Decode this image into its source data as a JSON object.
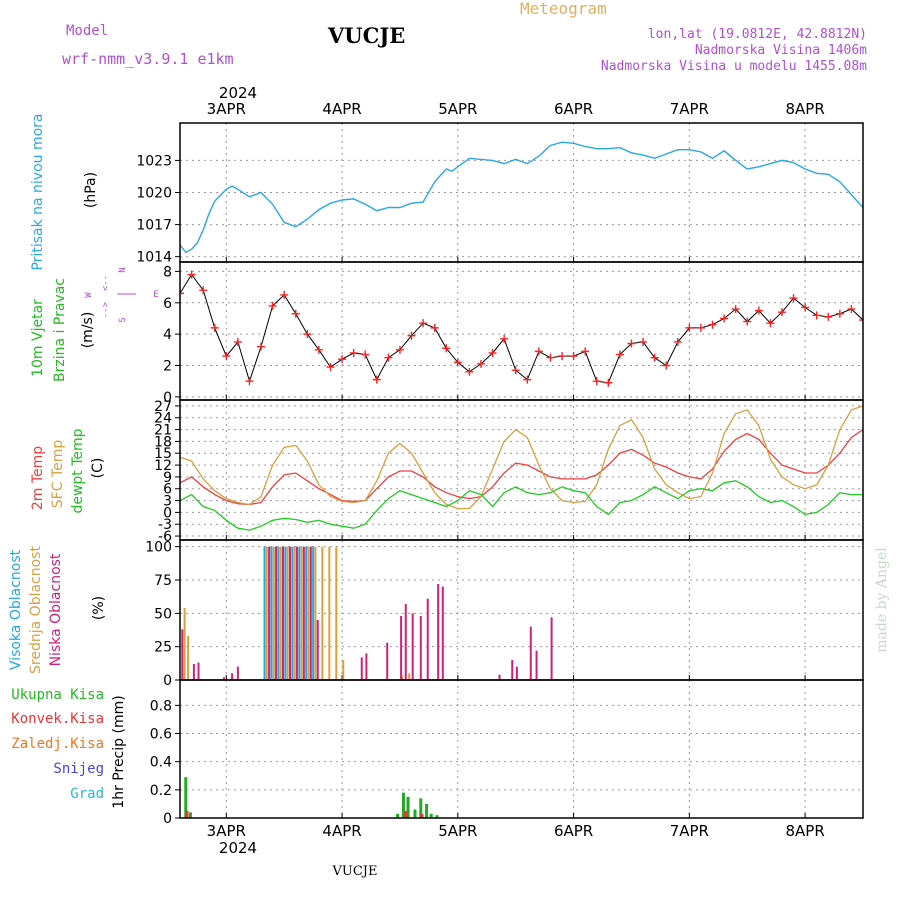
{
  "header": {
    "model_label": "Model",
    "model_name": "wrf-nmm_v3.9.1 e1km",
    "station": "VUCJE",
    "product": "Meteogram",
    "lonlat": "lon,lat (19.0812E, 42.8812N)",
    "elevation": "Nadmorska Visina 1406m",
    "model_elevation": "Nadmorska Visina u modelu 1455.08m"
  },
  "colors": {
    "pressure": "#2aa7e6",
    "wind_label": "#22bb22",
    "purple": "#b050d0",
    "orange": "#e0a030",
    "temp": "#ee4040",
    "sfc": "#d8a040",
    "dewpt": "#22cc22",
    "high_cloud": "#22aadd",
    "mid_cloud": "#d8a040",
    "low_cloud": "#cc2277",
    "precip_total": "#22aa22",
    "precip_conv": "#ee3333",
    "precip_frozen": "#ee7722",
    "precip_snow": "#4444dd",
    "precip_grad": "#22bbcc",
    "credit": "#c8d8c8"
  },
  "time_axis": {
    "year": "2024",
    "days": [
      "3APR",
      "4APR",
      "5APR",
      "6APR",
      "7APR",
      "8APR"
    ],
    "day_positions": [
      3,
      4,
      5,
      6,
      7,
      8
    ],
    "range": [
      2.6,
      8.5
    ]
  },
  "compass": {
    "n": "N",
    "w": "W",
    "e": "E",
    "s": "S",
    "w_arrow": "<--",
    "e_arrow": "-->"
  },
  "footer_station": "VUCJE",
  "credit": "made by Angel",
  "chart_data": [
    {
      "type": "line",
      "name": "pressure",
      "ylabel": [
        "Pritisak na nivou mora",
        "(hPa)"
      ],
      "ylim": [
        1013.5,
        1026.5
      ],
      "yticks": [
        1014,
        1017,
        1020,
        1023
      ],
      "series": [
        {
          "x": [
            2.6,
            2.65,
            2.7,
            2.75,
            2.8,
            2.85,
            2.9,
            3.0,
            3.05,
            3.1,
            3.2,
            3.3,
            3.4,
            3.5,
            3.6,
            3.7,
            3.8,
            3.9,
            4.0,
            4.1,
            4.2,
            4.3,
            4.4,
            4.5,
            4.6,
            4.7,
            4.8,
            4.85,
            4.9,
            4.95,
            5.0,
            5.1,
            5.2,
            5.3,
            5.4,
            5.5,
            5.6,
            5.7,
            5.8,
            5.9,
            6.0,
            6.1,
            6.2,
            6.3,
            6.4,
            6.5,
            6.6,
            6.7,
            6.8,
            6.9,
            7.0,
            7.1,
            7.2,
            7.3,
            7.4,
            7.5,
            7.6,
            7.7,
            7.8,
            7.9,
            8.0,
            8.1,
            8.2,
            8.3,
            8.4,
            8.5
          ],
          "values": [
            1015.1,
            1014.4,
            1014.7,
            1015.3,
            1016.5,
            1018.0,
            1019.2,
            1020.3,
            1020.6,
            1020.3,
            1019.6,
            1020.0,
            1018.9,
            1017.2,
            1016.8,
            1017.5,
            1018.4,
            1019.0,
            1019.3,
            1019.4,
            1018.9,
            1018.3,
            1018.6,
            1018.6,
            1019.0,
            1019.1,
            1021.0,
            1021.6,
            1022.2,
            1022.0,
            1022.4,
            1023.2,
            1023.1,
            1023.0,
            1022.7,
            1023.1,
            1022.7,
            1023.4,
            1024.4,
            1024.7,
            1024.6,
            1024.3,
            1024.1,
            1024.1,
            1024.2,
            1023.7,
            1023.5,
            1023.2,
            1023.6,
            1024.0,
            1024.0,
            1023.8,
            1023.2,
            1023.9,
            1023.0,
            1022.2,
            1022.4,
            1022.7,
            1023.0,
            1022.8,
            1022.2,
            1021.8,
            1021.7,
            1021.0,
            1019.8,
            1018.6
          ]
        }
      ]
    },
    {
      "type": "line",
      "name": "wind",
      "ylabel": [
        "10m Vjetar",
        "Brzina i Pravac",
        "(m/s)"
      ],
      "ylim": [
        -0.2,
        8.6
      ],
      "yticks": [
        0,
        2,
        4,
        6,
        8
      ],
      "series": [
        {
          "name": "speed",
          "x": [
            2.6,
            2.7,
            2.8,
            2.9,
            3.0,
            3.1,
            3.2,
            3.3,
            3.4,
            3.5,
            3.6,
            3.7,
            3.8,
            3.9,
            4.0,
            4.1,
            4.2,
            4.3,
            4.4,
            4.5,
            4.6,
            4.7,
            4.8,
            4.9,
            5.0,
            5.1,
            5.2,
            5.3,
            5.4,
            5.5,
            5.6,
            5.7,
            5.8,
            5.9,
            6.0,
            6.1,
            6.2,
            6.3,
            6.4,
            6.5,
            6.6,
            6.7,
            6.8,
            6.9,
            7.0,
            7.1,
            7.2,
            7.3,
            7.4,
            7.5,
            7.6,
            7.7,
            7.8,
            7.9,
            8.0,
            8.1,
            8.2,
            8.3,
            8.4,
            8.5
          ],
          "values": [
            6.6,
            7.8,
            6.8,
            4.4,
            2.6,
            3.5,
            1.0,
            3.2,
            5.8,
            6.5,
            5.3,
            4.0,
            3.0,
            1.9,
            2.4,
            2.8,
            2.7,
            1.1,
            2.5,
            3.0,
            3.9,
            4.7,
            4.4,
            3.1,
            2.2,
            1.6,
            2.1,
            2.8,
            3.7,
            1.7,
            1.1,
            2.9,
            2.5,
            2.6,
            2.6,
            2.9,
            1.0,
            0.9,
            2.7,
            3.4,
            3.5,
            2.5,
            2.0,
            3.5,
            4.4,
            4.4,
            4.6,
            5.0,
            5.6,
            4.8,
            5.5,
            4.7,
            5.4,
            6.3,
            5.7,
            5.2,
            5.1,
            5.3,
            5.6,
            4.9
          ]
        }
      ]
    },
    {
      "type": "line",
      "name": "temperature",
      "ylabel": [
        "2m Temp",
        "SFC Temp",
        "dewpt Temp",
        "(C)"
      ],
      "ylim": [
        -7,
        28.5
      ],
      "yticks": [
        -6,
        -3,
        0,
        3,
        6,
        9,
        12,
        15,
        18,
        21,
        24,
        27
      ],
      "series": [
        {
          "name": "2m Temp",
          "x": [
            2.6,
            2.7,
            2.8,
            2.9,
            3.0,
            3.1,
            3.2,
            3.3,
            3.4,
            3.5,
            3.6,
            3.7,
            3.8,
            3.9,
            4.0,
            4.1,
            4.2,
            4.3,
            4.4,
            4.5,
            4.6,
            4.7,
            4.8,
            4.9,
            5.0,
            5.1,
            5.2,
            5.3,
            5.4,
            5.5,
            5.6,
            5.7,
            5.8,
            5.9,
            6.0,
            6.1,
            6.2,
            6.3,
            6.4,
            6.5,
            6.6,
            6.7,
            6.8,
            6.9,
            7.0,
            7.1,
            7.2,
            7.3,
            7.4,
            7.5,
            7.6,
            7.7,
            7.8,
            7.9,
            8.0,
            8.1,
            8.2,
            8.3,
            8.4,
            8.5
          ],
          "values": [
            7.5,
            9.0,
            6.5,
            4.5,
            3.0,
            2.2,
            2.0,
            2.5,
            6.5,
            9.5,
            10.0,
            8.0,
            6.0,
            4.5,
            3.0,
            2.8,
            3.0,
            6.0,
            9.0,
            10.5,
            10.5,
            9.0,
            6.5,
            5.0,
            4.0,
            3.5,
            4.0,
            6.5,
            10.0,
            12.5,
            12.0,
            10.5,
            9.0,
            8.5,
            8.5,
            8.5,
            9.5,
            12.0,
            15.0,
            16.0,
            14.5,
            12.5,
            11.5,
            10.0,
            9.0,
            8.5,
            11.0,
            15.5,
            18.5,
            20.0,
            18.5,
            15.0,
            12.0,
            11.0,
            10.0,
            10.0,
            12.0,
            15.0,
            19.0,
            21.0
          ]
        },
        {
          "name": "SFC Temp",
          "x": [
            2.6,
            2.7,
            2.8,
            2.9,
            3.0,
            3.1,
            3.2,
            3.3,
            3.4,
            3.5,
            3.6,
            3.7,
            3.8,
            3.9,
            4.0,
            4.1,
            4.2,
            4.3,
            4.4,
            4.5,
            4.6,
            4.7,
            4.8,
            4.9,
            5.0,
            5.1,
            5.2,
            5.3,
            5.4,
            5.5,
            5.6,
            5.7,
            5.8,
            5.9,
            6.0,
            6.1,
            6.2,
            6.3,
            6.4,
            6.5,
            6.6,
            6.7,
            6.8,
            6.9,
            7.0,
            7.1,
            7.2,
            7.3,
            7.4,
            7.5,
            7.6,
            7.7,
            7.8,
            7.9,
            8.0,
            8.1,
            8.2,
            8.3,
            8.4,
            8.5
          ],
          "values": [
            14.0,
            13.0,
            8.5,
            5.5,
            3.5,
            2.5,
            2.0,
            4.0,
            12.0,
            16.5,
            17.0,
            13.0,
            7.0,
            4.0,
            2.8,
            2.5,
            3.0,
            8.0,
            15.0,
            17.5,
            15.0,
            10.0,
            5.0,
            2.0,
            1.0,
            1.0,
            4.0,
            11.0,
            18.0,
            21.0,
            19.0,
            12.0,
            6.0,
            3.0,
            2.5,
            2.8,
            7.0,
            16.0,
            22.0,
            23.5,
            19.0,
            11.0,
            7.0,
            5.0,
            3.5,
            4.0,
            10.0,
            20.0,
            25.0,
            26.0,
            22.0,
            13.5,
            9.0,
            7.0,
            6.0,
            7.0,
            12.0,
            21.0,
            26.0,
            27.0
          ]
        },
        {
          "name": "dewpt Temp",
          "x": [
            2.6,
            2.7,
            2.8,
            2.9,
            3.0,
            3.1,
            3.2,
            3.3,
            3.4,
            3.5,
            3.6,
            3.7,
            3.8,
            3.9,
            4.0,
            4.1,
            4.2,
            4.3,
            4.4,
            4.5,
            4.6,
            4.7,
            4.8,
            4.9,
            5.0,
            5.1,
            5.2,
            5.3,
            5.4,
            5.5,
            5.6,
            5.7,
            5.8,
            5.9,
            6.0,
            6.1,
            6.2,
            6.3,
            6.4,
            6.5,
            6.6,
            6.7,
            6.8,
            6.9,
            7.0,
            7.1,
            7.2,
            7.3,
            7.4,
            7.5,
            7.6,
            7.7,
            7.8,
            7.9,
            8.0,
            8.1,
            8.2,
            8.3,
            8.4,
            8.5
          ],
          "values": [
            3.0,
            4.5,
            1.5,
            0.5,
            -2.0,
            -4.0,
            -4.5,
            -3.5,
            -2.0,
            -1.5,
            -1.8,
            -2.5,
            -2.0,
            -3.0,
            -3.5,
            -4.0,
            -3.0,
            0.5,
            3.5,
            5.5,
            4.5,
            3.5,
            2.5,
            1.5,
            3.0,
            5.5,
            4.5,
            1.5,
            5.0,
            6.5,
            5.0,
            4.5,
            5.0,
            6.5,
            5.5,
            5.0,
            1.5,
            -0.5,
            2.5,
            3.0,
            4.5,
            6.5,
            5.0,
            3.5,
            5.5,
            6.0,
            5.5,
            7.5,
            8.0,
            6.5,
            4.0,
            2.5,
            3.0,
            1.5,
            -0.5,
            0.0,
            2.0,
            5.0,
            4.5,
            4.5
          ]
        }
      ]
    },
    {
      "type": "bar",
      "name": "cloud",
      "ylabel": [
        "Visoka Oblacnost",
        "Srednja Oblacnost",
        "Niska Oblacnost",
        "(%)"
      ],
      "ylim": [
        0,
        105
      ],
      "yticks": [
        0,
        25,
        50,
        75,
        100
      ],
      "series": [
        {
          "name": "Visoka Oblacnost",
          "x": [
            3.33,
            3.39,
            3.45,
            3.51,
            3.57,
            3.63,
            3.69,
            3.75
          ],
          "values": [
            100,
            100,
            100,
            100,
            100,
            100,
            100,
            100
          ]
        },
        {
          "name": "Srednja Oblacnost",
          "x": [
            2.64,
            2.67,
            3.35,
            3.41,
            3.47,
            3.53,
            3.59,
            3.65,
            3.71,
            3.77,
            3.83,
            3.89,
            3.95,
            4.01,
            4.52,
            4.58
          ],
          "values": [
            54,
            33,
            100,
            100,
            100,
            100,
            100,
            100,
            100,
            100,
            100,
            100,
            100,
            15,
            3,
            5
          ]
        },
        {
          "name": "Niska Oblacnost",
          "x": [
            2.62,
            2.72,
            2.76,
            2.98,
            3.05,
            3.1,
            3.37,
            3.43,
            3.49,
            3.55,
            3.61,
            3.67,
            3.73,
            3.79,
            4.17,
            4.21,
            4.39,
            4.51,
            4.55,
            4.61,
            4.68,
            4.74,
            4.83,
            4.87,
            5.36,
            5.47,
            5.51,
            5.63,
            5.68,
            5.81
          ],
          "values": [
            38,
            12,
            13,
            2,
            5,
            10,
            100,
            100,
            100,
            100,
            100,
            100,
            100,
            45,
            17,
            20,
            28,
            48,
            57,
            50,
            48,
            61,
            72,
            70,
            4,
            15,
            10,
            40,
            22,
            47
          ]
        }
      ]
    },
    {
      "type": "bar",
      "name": "precip",
      "ylabel": [
        "1hr Precip (mm)"
      ],
      "ylim": [
        0,
        0.98
      ],
      "yticks": [
        0,
        0.2,
        0.4,
        0.6,
        0.8
      ],
      "series": [
        {
          "name": "Ukupna Kisa",
          "x": [
            2.65,
            2.69,
            4.48,
            4.53,
            4.57,
            4.63,
            4.68,
            4.73,
            4.77,
            4.82
          ],
          "values": [
            0.29,
            0.04,
            0.03,
            0.18,
            0.15,
            0.06,
            0.14,
            0.1,
            0.03,
            0.02
          ]
        },
        {
          "name": "Konvek.Kisa",
          "x": [
            2.66,
            4.55,
            4.69
          ],
          "values": [
            0.05,
            0.05,
            0.03
          ]
        }
      ]
    }
  ],
  "legends": {
    "pressure": [
      "Pritisak na nivou mora",
      "(hPa)"
    ],
    "wind": [
      "10m Vjetar",
      "Brzina i Pravac",
      "(m/s)"
    ],
    "temp": [
      "2m Temp",
      "SFC Temp",
      "dewpt Temp",
      "(C)"
    ],
    "cloud": [
      "Visoka Oblacnost",
      "Srednja Oblacnost",
      "Niska Oblacnost",
      "(%)"
    ],
    "precip_keys": [
      "Ukupna Kisa",
      "Konvek.Kisa",
      "Zaledj.Kisa",
      "Snijeg",
      "Grad"
    ],
    "precip_unit": "1hr Precip (mm)"
  }
}
